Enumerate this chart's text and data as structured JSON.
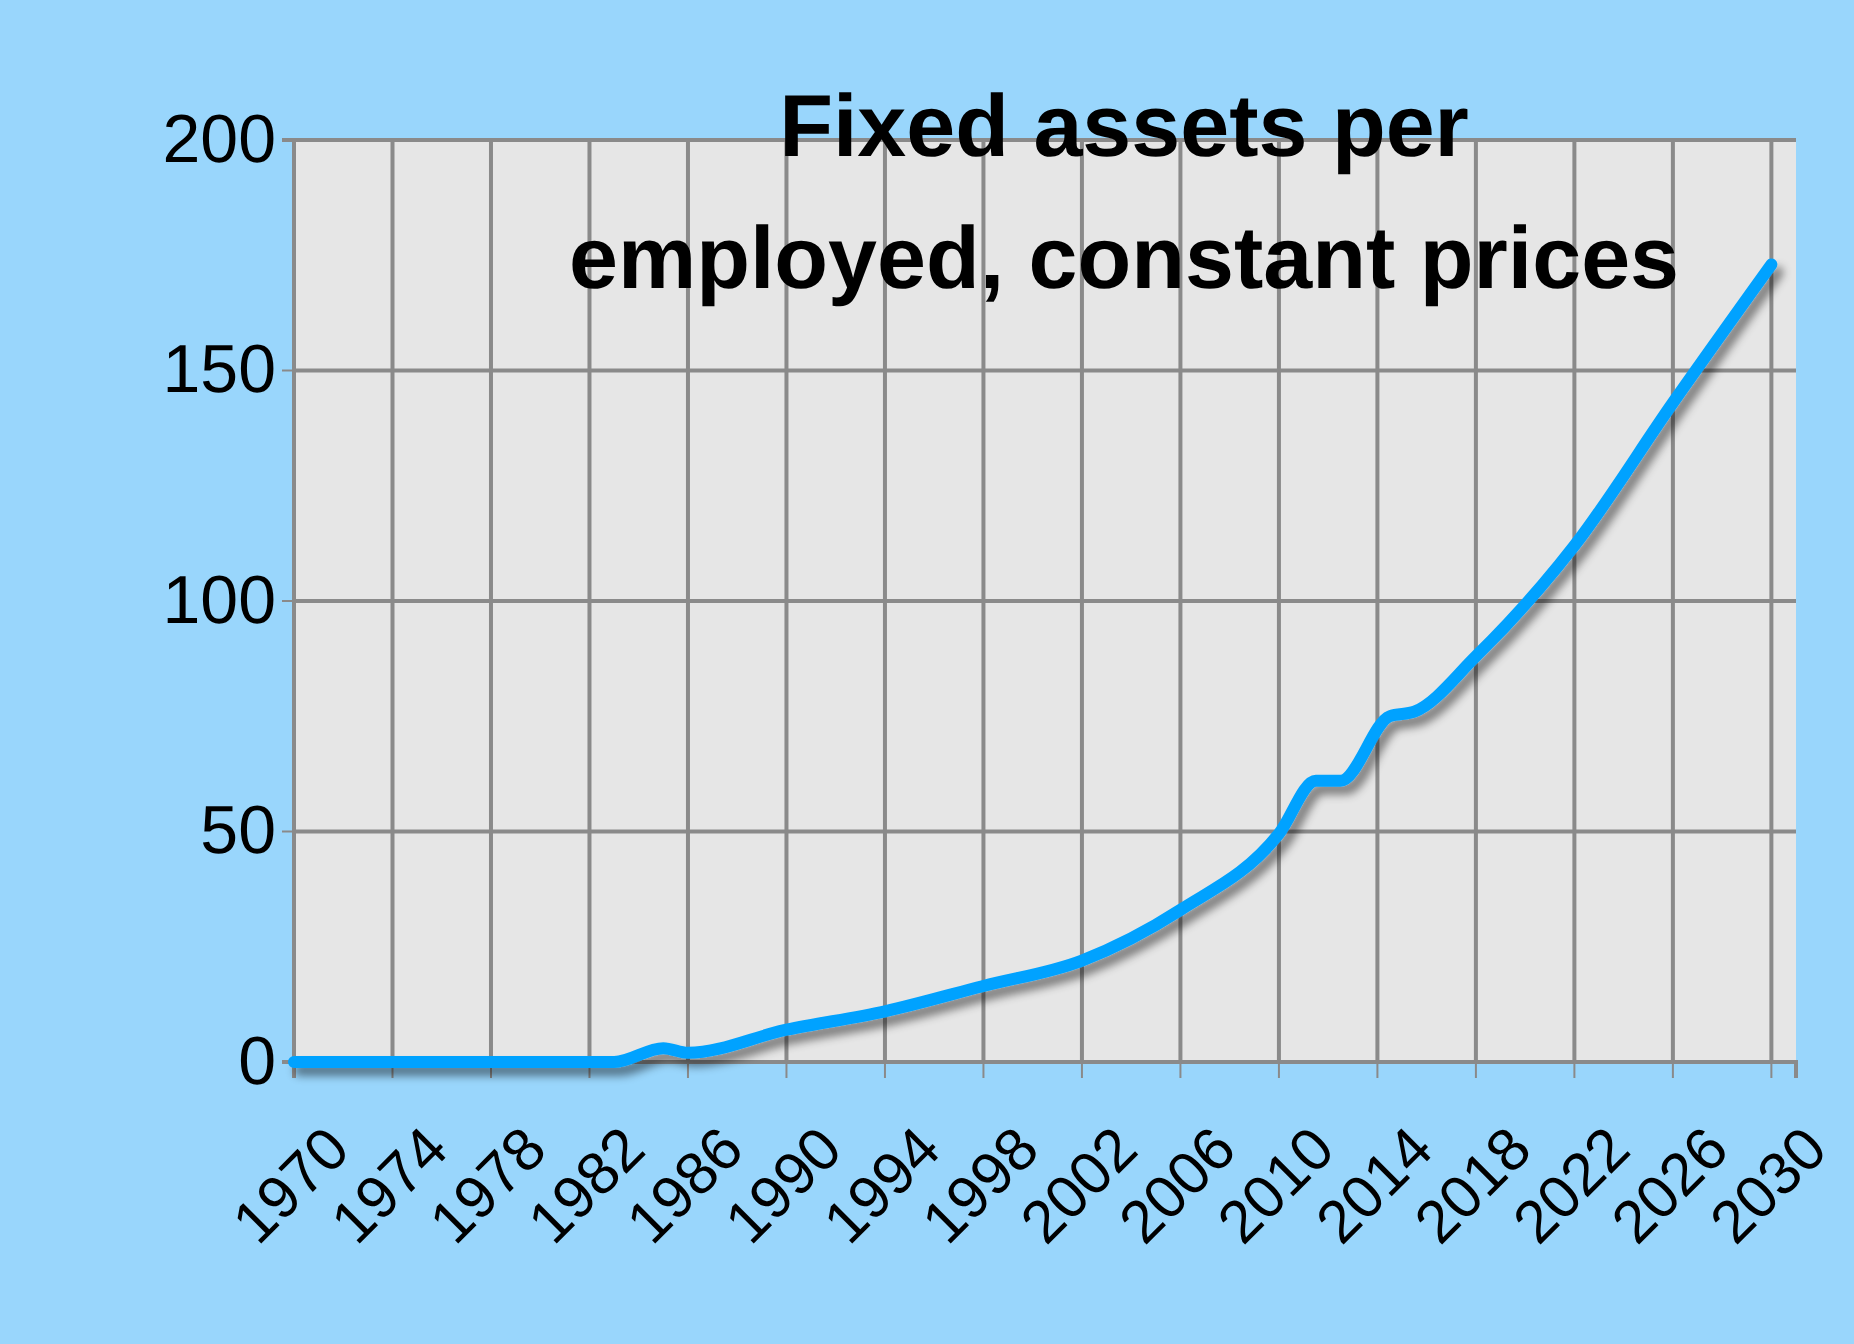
{
  "chart_data": {
    "type": "line",
    "title": "Fixed assets per employed, constant prices",
    "x": [
      1970,
      1983,
      1985,
      1986,
      1990,
      1994,
      1998,
      2002,
      2006,
      2010,
      2011.5,
      2012.5,
      2014.5,
      2015.5,
      2018,
      2022,
      2026,
      2030
    ],
    "series": [
      {
        "color": "#00a2ff",
        "values": [
          0,
          0,
          3,
          2,
          7,
          11,
          16.5,
          22,
          33,
          49.5,
          61,
          61,
          75,
          76,
          88,
          112,
          143,
          173
        ]
      }
    ],
    "xlim": [
      1970,
      2031
    ],
    "xticks": [
      1970,
      1974,
      1978,
      1982,
      1986,
      1990,
      1994,
      1998,
      2002,
      2006,
      2010,
      2014,
      2018,
      2022,
      2026,
      2030
    ],
    "ylim": [
      0,
      200
    ],
    "yticks": [
      0,
      50,
      100,
      150,
      200
    ],
    "grid": true,
    "marker": "none",
    "line_style": "solid"
  }
}
